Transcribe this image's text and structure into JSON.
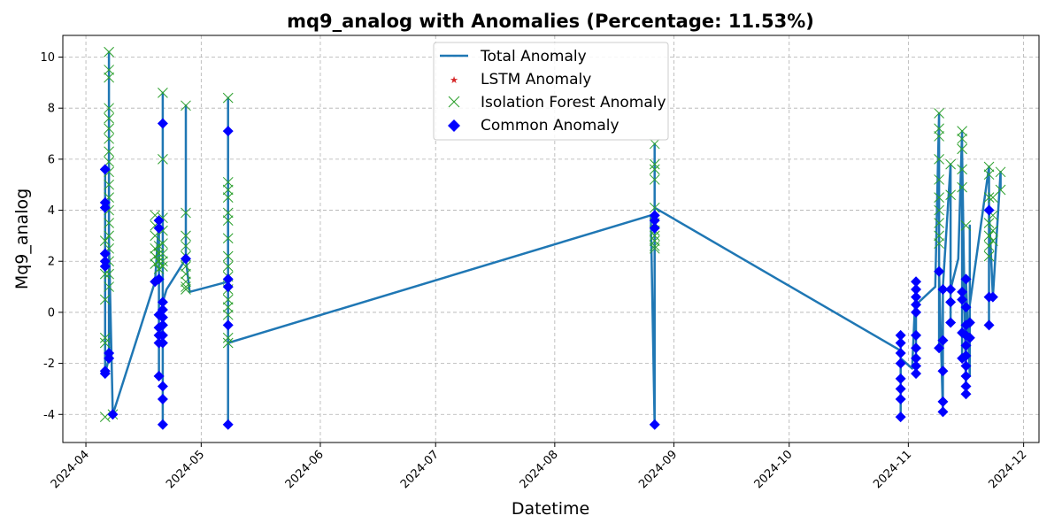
{
  "chart_data": {
    "type": "line",
    "title": "mq9_analog with Anomalies (Percentage: 11.53%)",
    "xlabel": "Datetime",
    "ylabel": "Mq9_analog",
    "x_ticks": [
      "2024-04",
      "2024-05",
      "2024-06",
      "2024-07",
      "2024-08",
      "2024-09",
      "2024-10",
      "2024-11",
      "2024-12"
    ],
    "y_ticks": [
      -4,
      -2,
      0,
      2,
      4,
      6,
      8,
      10
    ],
    "xlim": [
      "2024-03-26",
      "2024-12-05"
    ],
    "ylim": [
      -5.1,
      10.85
    ],
    "grid": true,
    "legend_position": "top-center",
    "colors": {
      "total": "#1f77b4",
      "lstm": "#d62728",
      "iforest": "#2ca02c",
      "common": "#0000ff"
    },
    "legend": [
      "Total Anomaly",
      "LSTM Anomaly",
      "Isolation Forest Anomaly",
      "Common Anomaly"
    ],
    "series": [
      {
        "name": "Total Anomaly",
        "points": [
          [
            "2024-04-06",
            2.3
          ],
          [
            "2024-04-06",
            -2.3
          ],
          [
            "2024-04-06",
            4.3
          ],
          [
            "2024-04-06",
            1.8
          ],
          [
            "2024-04-06",
            5.6
          ],
          [
            "2024-04-06",
            -2.4
          ],
          [
            "2024-04-07",
            -1.8
          ],
          [
            "2024-04-07",
            10.2
          ],
          [
            "2024-04-07",
            -1.6
          ],
          [
            "2024-04-07",
            2.8
          ],
          [
            "2024-04-08",
            -4.1
          ],
          [
            "2024-04-08",
            -4.0
          ],
          [
            "2024-04-19",
            1.2
          ],
          [
            "2024-04-20",
            3.6
          ],
          [
            "2024-04-20",
            -2.5
          ],
          [
            "2024-04-20",
            3.3
          ],
          [
            "2024-04-20",
            -0.6
          ],
          [
            "2024-04-21",
            -0.9
          ],
          [
            "2024-04-21",
            8.6
          ],
          [
            "2024-04-21",
            -2.9
          ],
          [
            "2024-04-21",
            7.4
          ],
          [
            "2024-04-21",
            -3.4
          ],
          [
            "2024-04-21",
            -4.4
          ],
          [
            "2024-04-21",
            2.0
          ],
          [
            "2024-04-21",
            0.4
          ],
          [
            "2024-04-22",
            0.9
          ],
          [
            "2024-04-27",
            2.1
          ],
          [
            "2024-04-27",
            8.1
          ],
          [
            "2024-04-27",
            2.1
          ],
          [
            "2024-04-28",
            0.8
          ],
          [
            "2024-05-08",
            1.2
          ],
          [
            "2024-05-08",
            8.4
          ],
          [
            "2024-05-08",
            -4.4
          ],
          [
            "2024-05-08",
            7.1
          ],
          [
            "2024-05-08",
            -0.5
          ],
          [
            "2024-05-08",
            1.3
          ],
          [
            "2024-05-08",
            -1.2
          ],
          [
            "2024-08-26",
            3.8
          ],
          [
            "2024-08-27",
            -4.4
          ],
          [
            "2024-08-27",
            6.6
          ],
          [
            "2024-08-27",
            3.3
          ],
          [
            "2024-08-27",
            4.1
          ],
          [
            "2024-10-30",
            -1.5
          ],
          [
            "2024-10-30",
            -4.1
          ],
          [
            "2024-10-30",
            -0.9
          ],
          [
            "2024-10-30",
            -3.4
          ],
          [
            "2024-10-30",
            -1.8
          ],
          [
            "2024-11-02",
            -2.2
          ],
          [
            "2024-11-03",
            1.2
          ],
          [
            "2024-11-03",
            -2.4
          ],
          [
            "2024-11-03",
            0.3
          ],
          [
            "2024-11-08",
            1.0
          ],
          [
            "2024-11-09",
            7.8
          ],
          [
            "2024-11-09",
            -1.4
          ],
          [
            "2024-11-09",
            1.6
          ],
          [
            "2024-11-10",
            -3.9
          ],
          [
            "2024-11-10",
            -2.3
          ],
          [
            "2024-11-10",
            1.0
          ],
          [
            "2024-11-12",
            5.8
          ],
          [
            "2024-11-12",
            -0.4
          ],
          [
            "2024-11-12",
            0.9
          ],
          [
            "2024-11-14",
            2.1
          ],
          [
            "2024-11-15",
            7.1
          ],
          [
            "2024-11-15",
            -1.8
          ],
          [
            "2024-11-15",
            6.3
          ],
          [
            "2024-11-16",
            -3.2
          ],
          [
            "2024-11-16",
            1.3
          ],
          [
            "2024-11-17",
            -2.5
          ],
          [
            "2024-11-17",
            3.4
          ],
          [
            "2024-11-17",
            0.3
          ],
          [
            "2024-11-22",
            5.7
          ],
          [
            "2024-11-22",
            -0.5
          ],
          [
            "2024-11-22",
            4.0
          ],
          [
            "2024-11-23",
            0.6
          ],
          [
            "2024-11-25",
            5.5
          ],
          [
            "2024-11-25",
            4.8
          ]
        ]
      },
      {
        "name": "LSTM Anomaly",
        "points": []
      },
      {
        "name": "Isolation Forest Anomaly",
        "points": [
          [
            "2024-04-06",
            -4.1
          ],
          [
            "2024-04-06",
            -1.2
          ],
          [
            "2024-04-06",
            -1.0
          ],
          [
            "2024-04-06",
            0.5
          ],
          [
            "2024-04-06",
            1.5
          ],
          [
            "2024-04-06",
            2.8
          ],
          [
            "2024-04-07",
            10.2
          ],
          [
            "2024-04-07",
            9.5
          ],
          [
            "2024-04-07",
            9.2
          ],
          [
            "2024-04-07",
            8.0
          ],
          [
            "2024-04-07",
            7.6
          ],
          [
            "2024-04-07",
            7.2
          ],
          [
            "2024-04-07",
            6.8
          ],
          [
            "2024-04-07",
            6.3
          ],
          [
            "2024-04-07",
            5.9
          ],
          [
            "2024-04-07",
            5.5
          ],
          [
            "2024-04-07",
            5.0
          ],
          [
            "2024-04-07",
            4.5
          ],
          [
            "2024-04-07",
            4.0
          ],
          [
            "2024-04-07",
            3.5
          ],
          [
            "2024-04-07",
            3.0
          ],
          [
            "2024-04-07",
            2.5
          ],
          [
            "2024-04-07",
            2.0
          ],
          [
            "2024-04-07",
            1.5
          ],
          [
            "2024-04-07",
            1.0
          ],
          [
            "2024-04-08",
            -4.0
          ],
          [
            "2024-04-19",
            3.8
          ],
          [
            "2024-04-19",
            3.4
          ],
          [
            "2024-04-19",
            3.0
          ],
          [
            "2024-04-19",
            2.5
          ],
          [
            "2024-04-19",
            2.2
          ],
          [
            "2024-04-19",
            1.9
          ],
          [
            "2024-04-20",
            2.6
          ],
          [
            "2024-04-20",
            2.3
          ],
          [
            "2024-04-20",
            2.0
          ],
          [
            "2024-04-20",
            1.7
          ],
          [
            "2024-04-21",
            8.6
          ],
          [
            "2024-04-21",
            6.0
          ],
          [
            "2024-04-21",
            3.7
          ],
          [
            "2024-04-21",
            3.2
          ],
          [
            "2024-04-21",
            2.7
          ],
          [
            "2024-04-21",
            2.3
          ],
          [
            "2024-04-21",
            2.0
          ],
          [
            "2024-04-21",
            1.8
          ],
          [
            "2024-04-27",
            8.1
          ],
          [
            "2024-04-27",
            3.9
          ],
          [
            "2024-04-27",
            3.0
          ],
          [
            "2024-04-27",
            2.6
          ],
          [
            "2024-04-27",
            2.2
          ],
          [
            "2024-04-27",
            1.8
          ],
          [
            "2024-04-27",
            1.5
          ],
          [
            "2024-04-27",
            1.2
          ],
          [
            "2024-04-27",
            1.0
          ],
          [
            "2024-04-27",
            0.9
          ],
          [
            "2024-05-08",
            8.4
          ],
          [
            "2024-05-08",
            5.1
          ],
          [
            "2024-05-08",
            4.8
          ],
          [
            "2024-05-08",
            4.5
          ],
          [
            "2024-05-08",
            3.9
          ],
          [
            "2024-05-08",
            3.6
          ],
          [
            "2024-05-08",
            2.9
          ],
          [
            "2024-05-08",
            2.2
          ],
          [
            "2024-05-08",
            1.8
          ],
          [
            "2024-05-08",
            1.4
          ],
          [
            "2024-05-08",
            0.9
          ],
          [
            "2024-05-08",
            0.5
          ],
          [
            "2024-05-08",
            0.2
          ],
          [
            "2024-05-08",
            -0.1
          ],
          [
            "2024-05-08",
            -1.0
          ],
          [
            "2024-05-08",
            -1.2
          ],
          [
            "2024-08-27",
            6.6
          ],
          [
            "2024-08-27",
            5.8
          ],
          [
            "2024-08-27",
            5.6
          ],
          [
            "2024-08-27",
            5.2
          ],
          [
            "2024-08-27",
            4.1
          ],
          [
            "2024-08-27",
            3.5
          ],
          [
            "2024-08-27",
            3.2
          ],
          [
            "2024-08-27",
            3.0
          ],
          [
            "2024-08-27",
            2.8
          ],
          [
            "2024-08-27",
            2.6
          ],
          [
            "2024-08-27",
            2.5
          ],
          [
            "2024-11-09",
            7.8
          ],
          [
            "2024-11-09",
            7.2
          ],
          [
            "2024-11-09",
            6.9
          ],
          [
            "2024-11-09",
            6.0
          ],
          [
            "2024-11-09",
            5.2
          ],
          [
            "2024-11-09",
            4.5
          ],
          [
            "2024-11-09",
            4.0
          ],
          [
            "2024-11-09",
            3.5
          ],
          [
            "2024-11-09",
            3.0
          ],
          [
            "2024-11-09",
            2.7
          ],
          [
            "2024-11-12",
            5.8
          ],
          [
            "2024-11-12",
            4.6
          ],
          [
            "2024-11-15",
            7.1
          ],
          [
            "2024-11-15",
            6.8
          ],
          [
            "2024-11-15",
            6.4
          ],
          [
            "2024-11-15",
            5.6
          ],
          [
            "2024-11-15",
            4.9
          ],
          [
            "2024-11-16",
            3.4
          ],
          [
            "2024-11-22",
            5.7
          ],
          [
            "2024-11-22",
            5.4
          ],
          [
            "2024-11-22",
            4.5
          ],
          [
            "2024-11-22",
            3.5
          ],
          [
            "2024-11-22",
            3.0
          ],
          [
            "2024-11-22",
            2.6
          ],
          [
            "2024-11-22",
            2.2
          ],
          [
            "2024-11-23",
            4.5
          ],
          [
            "2024-11-23",
            3.8
          ],
          [
            "2024-11-23",
            3.2
          ],
          [
            "2024-11-23",
            2.8
          ],
          [
            "2024-11-25",
            5.5
          ],
          [
            "2024-11-25",
            4.8
          ]
        ]
      },
      {
        "name": "Common Anomaly",
        "points": [
          [
            "2024-04-06",
            5.6
          ],
          [
            "2024-04-06",
            4.3
          ],
          [
            "2024-04-06",
            4.1
          ],
          [
            "2024-04-06",
            2.3
          ],
          [
            "2024-04-06",
            2.0
          ],
          [
            "2024-04-06",
            1.8
          ],
          [
            "2024-04-06",
            -2.3
          ],
          [
            "2024-04-06",
            -2.4
          ],
          [
            "2024-04-07",
            -1.6
          ],
          [
            "2024-04-07",
            -1.8
          ],
          [
            "2024-04-08",
            -4.0
          ],
          [
            "2024-04-19",
            1.2
          ],
          [
            "2024-04-20",
            3.6
          ],
          [
            "2024-04-20",
            3.3
          ],
          [
            "2024-04-20",
            1.3
          ],
          [
            "2024-04-20",
            -0.1
          ],
          [
            "2024-04-20",
            -0.6
          ],
          [
            "2024-04-20",
            -0.9
          ],
          [
            "2024-04-20",
            -1.2
          ],
          [
            "2024-04-20",
            -2.5
          ],
          [
            "2024-04-21",
            7.4
          ],
          [
            "2024-04-21",
            0.4
          ],
          [
            "2024-04-21",
            0.1
          ],
          [
            "2024-04-21",
            -0.2
          ],
          [
            "2024-04-21",
            -0.5
          ],
          [
            "2024-04-21",
            -0.9
          ],
          [
            "2024-04-21",
            -1.2
          ],
          [
            "2024-04-21",
            -2.9
          ],
          [
            "2024-04-21",
            -3.4
          ],
          [
            "2024-04-21",
            -4.4
          ],
          [
            "2024-04-27",
            2.1
          ],
          [
            "2024-05-08",
            7.1
          ],
          [
            "2024-05-08",
            1.3
          ],
          [
            "2024-05-08",
            1.0
          ],
          [
            "2024-05-08",
            -0.5
          ],
          [
            "2024-05-08",
            -4.4
          ],
          [
            "2024-08-27",
            3.8
          ],
          [
            "2024-08-27",
            3.6
          ],
          [
            "2024-08-27",
            3.3
          ],
          [
            "2024-08-27",
            -4.4
          ],
          [
            "2024-10-30",
            -0.9
          ],
          [
            "2024-10-30",
            -1.2
          ],
          [
            "2024-10-30",
            -1.6
          ],
          [
            "2024-10-30",
            -2.0
          ],
          [
            "2024-10-30",
            -2.6
          ],
          [
            "2024-10-30",
            -3.0
          ],
          [
            "2024-10-30",
            -3.4
          ],
          [
            "2024-10-30",
            -4.1
          ],
          [
            "2024-11-03",
            1.2
          ],
          [
            "2024-11-03",
            0.9
          ],
          [
            "2024-11-03",
            0.6
          ],
          [
            "2024-11-03",
            0.3
          ],
          [
            "2024-11-03",
            0.0
          ],
          [
            "2024-11-03",
            -0.9
          ],
          [
            "2024-11-03",
            -1.4
          ],
          [
            "2024-11-03",
            -1.8
          ],
          [
            "2024-11-03",
            -2.1
          ],
          [
            "2024-11-03",
            -2.4
          ],
          [
            "2024-11-09",
            1.6
          ],
          [
            "2024-11-09",
            -1.4
          ],
          [
            "2024-11-10",
            -1.1
          ],
          [
            "2024-11-10",
            -2.3
          ],
          [
            "2024-11-10",
            -3.5
          ],
          [
            "2024-11-10",
            -3.9
          ],
          [
            "2024-11-10",
            0.9
          ],
          [
            "2024-11-12",
            0.9
          ],
          [
            "2024-11-12",
            0.4
          ],
          [
            "2024-11-12",
            -0.4
          ],
          [
            "2024-11-15",
            0.8
          ],
          [
            "2024-11-15",
            0.5
          ],
          [
            "2024-11-15",
            -0.8
          ],
          [
            "2024-11-15",
            -1.8
          ],
          [
            "2024-11-16",
            1.3
          ],
          [
            "2024-11-16",
            0.2
          ],
          [
            "2024-11-16",
            -0.5
          ],
          [
            "2024-11-16",
            -0.9
          ],
          [
            "2024-11-16",
            -1.3
          ],
          [
            "2024-11-16",
            -1.7
          ],
          [
            "2024-11-16",
            -2.1
          ],
          [
            "2024-11-16",
            -2.5
          ],
          [
            "2024-11-16",
            -2.9
          ],
          [
            "2024-11-16",
            -3.2
          ],
          [
            "2024-11-17",
            -0.4
          ],
          [
            "2024-11-17",
            -1.0
          ],
          [
            "2024-11-22",
            4.0
          ],
          [
            "2024-11-22",
            0.6
          ],
          [
            "2024-11-22",
            -0.5
          ],
          [
            "2024-11-23",
            0.6
          ]
        ]
      }
    ]
  }
}
